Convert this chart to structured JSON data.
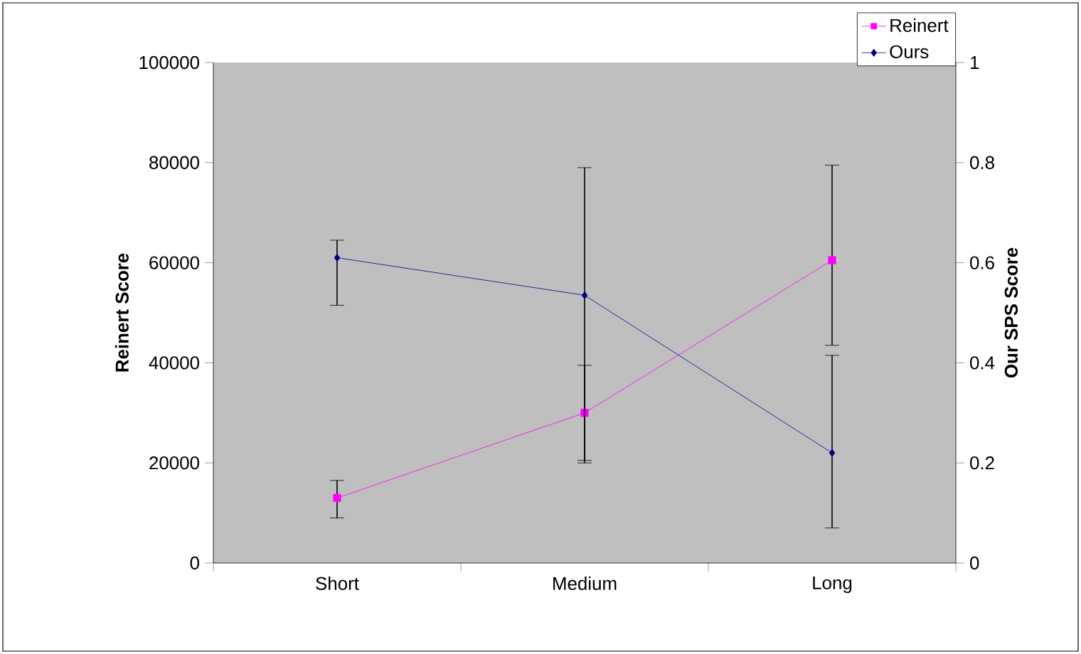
{
  "chart_data": {
    "type": "line",
    "categories": [
      "Short",
      "Medium",
      "Long"
    ],
    "ylabel": "Reinert Score",
    "y2label": "Our SPS Score",
    "ylim": [
      0,
      100000
    ],
    "yticks": [
      0,
      20000,
      40000,
      60000,
      80000,
      100000
    ],
    "y2lim": [
      0,
      1
    ],
    "y2ticks": [
      0,
      0.2,
      0.4,
      0.6,
      0.8,
      1
    ],
    "grid": false,
    "legend": "top right",
    "line_style": "solid",
    "series": [
      {
        "name": "Reinert",
        "color": "#ff00ff",
        "marker": "square",
        "values": [
          13000,
          30000,
          60500
        ],
        "errors": [
          [
            9000,
            16500
          ],
          [
            20500,
            39500
          ],
          [
            43500,
            79500
          ]
        ]
      },
      {
        "name": "Ours",
        "color": "#000080",
        "marker": "diamond",
        "axis": "y2",
        "values": [
          0.61,
          0.535,
          0.22
        ],
        "errors": [
          [
            0.515,
            0.645
          ],
          [
            0.2,
            0.79
          ],
          [
            0.07,
            0.415
          ]
        ]
      }
    ]
  }
}
